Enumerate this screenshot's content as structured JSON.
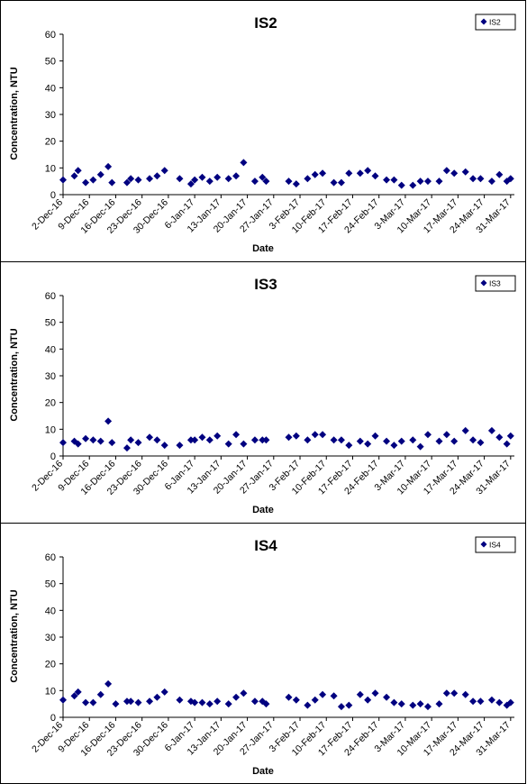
{
  "chart_data": [
    {
      "type": "scatter",
      "title": "IS2",
      "xlabel": "Date",
      "ylabel": "Concentration, NTU",
      "ylim": [
        0,
        60
      ],
      "yticks": [
        "0",
        "10",
        "20",
        "30",
        "40",
        "50",
        "60"
      ],
      "xticks": [
        "2-Dec-16",
        "9-Dec-16",
        "16-Dec-16",
        "23-Dec-16",
        "30-Dec-16",
        "6-Jan-17",
        "13-Jan-17",
        "20-Jan-17",
        "27-Jan-17",
        "3-Feb-17",
        "10-Feb-17",
        "17-Feb-17",
        "24-Feb-17",
        "3-Mar-17",
        "10-Mar-17",
        "17-Mar-17",
        "24-Mar-17",
        "31-Mar-17"
      ],
      "legend": "top-right",
      "grid": false,
      "marker_color": "#000080",
      "series": [
        {
          "name": "IS2",
          "x": [
            "2-Dec-16",
            "5-Dec-16",
            "6-Dec-16",
            "8-Dec-16",
            "10-Dec-16",
            "12-Dec-16",
            "14-Dec-16",
            "15-Dec-16",
            "19-Dec-16",
            "20-Dec-16",
            "22-Dec-16",
            "25-Dec-16",
            "27-Dec-16",
            "29-Dec-16",
            "2-Jan-17",
            "5-Jan-17",
            "6-Jan-17",
            "8-Jan-17",
            "10-Jan-17",
            "12-Jan-17",
            "15-Jan-17",
            "17-Jan-17",
            "19-Jan-17",
            "22-Jan-17",
            "24-Jan-17",
            "25-Jan-17",
            "31-Jan-17",
            "2-Feb-17",
            "5-Feb-17",
            "7-Feb-17",
            "9-Feb-17",
            "12-Feb-17",
            "14-Feb-17",
            "16-Feb-17",
            "19-Feb-17",
            "21-Feb-17",
            "23-Feb-17",
            "26-Feb-17",
            "28-Feb-17",
            "2-Mar-17",
            "5-Mar-17",
            "7-Mar-17",
            "9-Mar-17",
            "12-Mar-17",
            "14-Mar-17",
            "16-Mar-17",
            "19-Mar-17",
            "21-Mar-17",
            "23-Mar-17",
            "26-Mar-17",
            "28-Mar-17",
            "30-Mar-17",
            "31-Mar-17"
          ],
          "y": [
            5.5,
            7,
            9,
            4.5,
            5.5,
            7.5,
            10.5,
            4.5,
            4.5,
            6,
            5.5,
            6,
            7,
            9,
            6,
            4,
            5.5,
            6.5,
            5,
            6.5,
            6,
            7,
            12,
            5,
            6.5,
            5,
            5,
            4,
            6,
            7.5,
            8,
            4.5,
            4.5,
            8,
            8,
            9,
            7,
            5.5,
            5.5,
            3.5,
            3.5,
            5,
            5,
            5,
            9,
            8,
            8.5,
            6,
            6,
            5,
            7.5,
            5,
            6
          ]
        }
      ]
    },
    {
      "type": "scatter",
      "title": "IS3",
      "xlabel": "Date",
      "ylabel": "Concentration, NTU",
      "ylim": [
        0,
        60
      ],
      "yticks": [
        "0",
        "10",
        "20",
        "30",
        "40",
        "50",
        "60"
      ],
      "xticks": [
        "2-Dec-16",
        "9-Dec-16",
        "16-Dec-16",
        "23-Dec-16",
        "30-Dec-16",
        "6-Jan-17",
        "13-Jan-17",
        "20-Jan-17",
        "27-Jan-17",
        "3-Feb-17",
        "10-Feb-17",
        "17-Feb-17",
        "24-Feb-17",
        "3-Mar-17",
        "10-Mar-17",
        "17-Mar-17",
        "24-Mar-17",
        "31-Mar-17"
      ],
      "legend": "top-right",
      "grid": false,
      "marker_color": "#000080",
      "series": [
        {
          "name": "IS3",
          "x": [
            "2-Dec-16",
            "5-Dec-16",
            "6-Dec-16",
            "8-Dec-16",
            "10-Dec-16",
            "12-Dec-16",
            "14-Dec-16",
            "15-Dec-16",
            "19-Dec-16",
            "20-Dec-16",
            "22-Dec-16",
            "25-Dec-16",
            "27-Dec-16",
            "29-Dec-16",
            "2-Jan-17",
            "5-Jan-17",
            "6-Jan-17",
            "8-Jan-17",
            "10-Jan-17",
            "12-Jan-17",
            "15-Jan-17",
            "17-Jan-17",
            "19-Jan-17",
            "22-Jan-17",
            "24-Jan-17",
            "25-Jan-17",
            "31-Jan-17",
            "2-Feb-17",
            "5-Feb-17",
            "7-Feb-17",
            "9-Feb-17",
            "12-Feb-17",
            "14-Feb-17",
            "16-Feb-17",
            "19-Feb-17",
            "21-Feb-17",
            "23-Feb-17",
            "26-Feb-17",
            "28-Feb-17",
            "2-Mar-17",
            "5-Mar-17",
            "7-Mar-17",
            "9-Mar-17",
            "12-Mar-17",
            "14-Mar-17",
            "16-Mar-17",
            "19-Mar-17",
            "21-Mar-17",
            "23-Mar-17",
            "26-Mar-17",
            "28-Mar-17",
            "30-Mar-17",
            "31-Mar-17"
          ],
          "y": [
            5,
            5.5,
            4.5,
            6.5,
            6,
            5.5,
            13,
            5,
            3,
            6,
            5,
            7,
            6,
            4,
            4,
            6,
            6,
            7,
            6,
            7.5,
            4.5,
            8,
            4.5,
            6,
            6,
            6,
            7,
            7.5,
            6,
            8,
            8,
            6,
            6,
            4,
            5.5,
            4.5,
            7.5,
            5.5,
            4,
            5.5,
            6,
            3.5,
            8,
            5.5,
            8,
            5.5,
            9.5,
            6,
            5,
            9.5,
            7,
            4.5,
            7.5
          ]
        }
      ]
    },
    {
      "type": "scatter",
      "title": "IS4",
      "xlabel": "Date",
      "ylabel": "Concentration, NTU",
      "ylim": [
        0,
        60
      ],
      "yticks": [
        "0",
        "10",
        "20",
        "30",
        "40",
        "50",
        "60"
      ],
      "xticks": [
        "2-Dec-16",
        "9-Dec-16",
        "16-Dec-16",
        "23-Dec-16",
        "30-Dec-16",
        "6-Jan-17",
        "13-Jan-17",
        "20-Jan-17",
        "27-Jan-17",
        "3-Feb-17",
        "10-Feb-17",
        "17-Feb-17",
        "24-Feb-17",
        "3-Mar-17",
        "10-Mar-17",
        "17-Mar-17",
        "24-Mar-17",
        "31-Mar-17"
      ],
      "legend": "top-right",
      "grid": false,
      "marker_color": "#000080",
      "series": [
        {
          "name": "IS4",
          "x": [
            "2-Dec-16",
            "5-Dec-16",
            "6-Dec-16",
            "8-Dec-16",
            "10-Dec-16",
            "12-Dec-16",
            "14-Dec-16",
            "16-Dec-16",
            "19-Dec-16",
            "20-Dec-16",
            "22-Dec-16",
            "25-Dec-16",
            "27-Dec-16",
            "29-Dec-16",
            "2-Jan-17",
            "5-Jan-17",
            "6-Jan-17",
            "8-Jan-17",
            "10-Jan-17",
            "12-Jan-17",
            "15-Jan-17",
            "17-Jan-17",
            "19-Jan-17",
            "22-Jan-17",
            "24-Jan-17",
            "25-Jan-17",
            "31-Jan-17",
            "2-Feb-17",
            "5-Feb-17",
            "7-Feb-17",
            "9-Feb-17",
            "12-Feb-17",
            "14-Feb-17",
            "16-Feb-17",
            "19-Feb-17",
            "21-Feb-17",
            "23-Feb-17",
            "26-Feb-17",
            "28-Feb-17",
            "2-Mar-17",
            "5-Mar-17",
            "7-Mar-17",
            "9-Mar-17",
            "12-Mar-17",
            "14-Mar-17",
            "16-Mar-17",
            "19-Mar-17",
            "21-Mar-17",
            "23-Mar-17",
            "26-Mar-17",
            "28-Mar-17",
            "30-Mar-17",
            "31-Mar-17"
          ],
          "y": [
            6.5,
            8,
            9.5,
            5.5,
            5.5,
            8.5,
            12.5,
            5,
            6,
            6,
            5.5,
            6,
            7.5,
            9.5,
            6.5,
            6,
            5.5,
            5.5,
            5,
            6,
            5,
            7.5,
            9,
            6,
            6,
            5,
            7.5,
            6.5,
            4.5,
            6.5,
            8.5,
            8,
            4,
            4.5,
            8.5,
            6.5,
            9,
            7.5,
            5.5,
            5,
            4.5,
            5,
            4,
            5,
            9,
            9,
            8.5,
            6,
            6,
            6.5,
            5.5,
            4.5,
            5.5
          ]
        }
      ]
    }
  ]
}
